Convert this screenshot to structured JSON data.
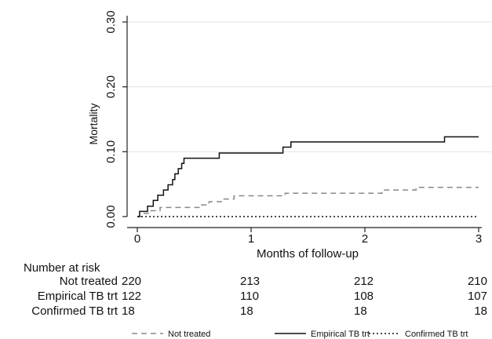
{
  "chart_data": {
    "type": "line",
    "title": "",
    "xlabel": "Months of follow-up",
    "ylabel": "Mortality",
    "xlim": [
      0,
      3
    ],
    "ylim": [
      0,
      0.3
    ],
    "x_ticks": [
      "0",
      "1",
      "2",
      "3"
    ],
    "y_ticks": [
      "0.00",
      "0.10",
      "0.20",
      "0.30"
    ],
    "grid": "horizontal",
    "step": true,
    "series": [
      {
        "name": "Not treated",
        "style": "dashed",
        "points": [
          [
            0,
            0
          ],
          [
            0.05,
            0.005
          ],
          [
            0.12,
            0.009
          ],
          [
            0.2,
            0.014
          ],
          [
            0.55,
            0.018
          ],
          [
            0.63,
            0.023
          ],
          [
            0.75,
            0.027
          ],
          [
            0.85,
            0.032
          ],
          [
            1.3,
            0.036
          ],
          [
            2.15,
            0.041
          ],
          [
            2.45,
            0.045
          ],
          [
            3,
            0.045
          ]
        ]
      },
      {
        "name": "Empirical TB trt",
        "style": "solid",
        "points": [
          [
            0,
            0
          ],
          [
            0.02,
            0.008
          ],
          [
            0.09,
            0.016
          ],
          [
            0.14,
            0.025
          ],
          [
            0.18,
            0.033
          ],
          [
            0.23,
            0.041
          ],
          [
            0.27,
            0.049
          ],
          [
            0.31,
            0.057
          ],
          [
            0.33,
            0.066
          ],
          [
            0.36,
            0.074
          ],
          [
            0.39,
            0.082
          ],
          [
            0.41,
            0.09
          ],
          [
            0.72,
            0.098
          ],
          [
            1.28,
            0.107
          ],
          [
            1.35,
            0.115
          ],
          [
            2.7,
            0.123
          ],
          [
            3,
            0.123
          ]
        ]
      },
      {
        "name": "Confirmed TB trt",
        "style": "dotted",
        "points": [
          [
            0,
            0
          ],
          [
            3,
            0
          ]
        ]
      }
    ],
    "legend": [
      "Not treated",
      "Empirical TB trt",
      "Confirmed TB trt"
    ],
    "legend_position": "bottom",
    "risk_table": {
      "title": "Number at risk",
      "rows": [
        {
          "label": "Not treated",
          "values": [
            220,
            213,
            212,
            210
          ]
        },
        {
          "label": "Empirical TB trt",
          "values": [
            122,
            110,
            108,
            107
          ]
        },
        {
          "label": "Confirmed TB trt",
          "values": [
            18,
            18,
            18,
            18
          ]
        }
      ]
    }
  }
}
